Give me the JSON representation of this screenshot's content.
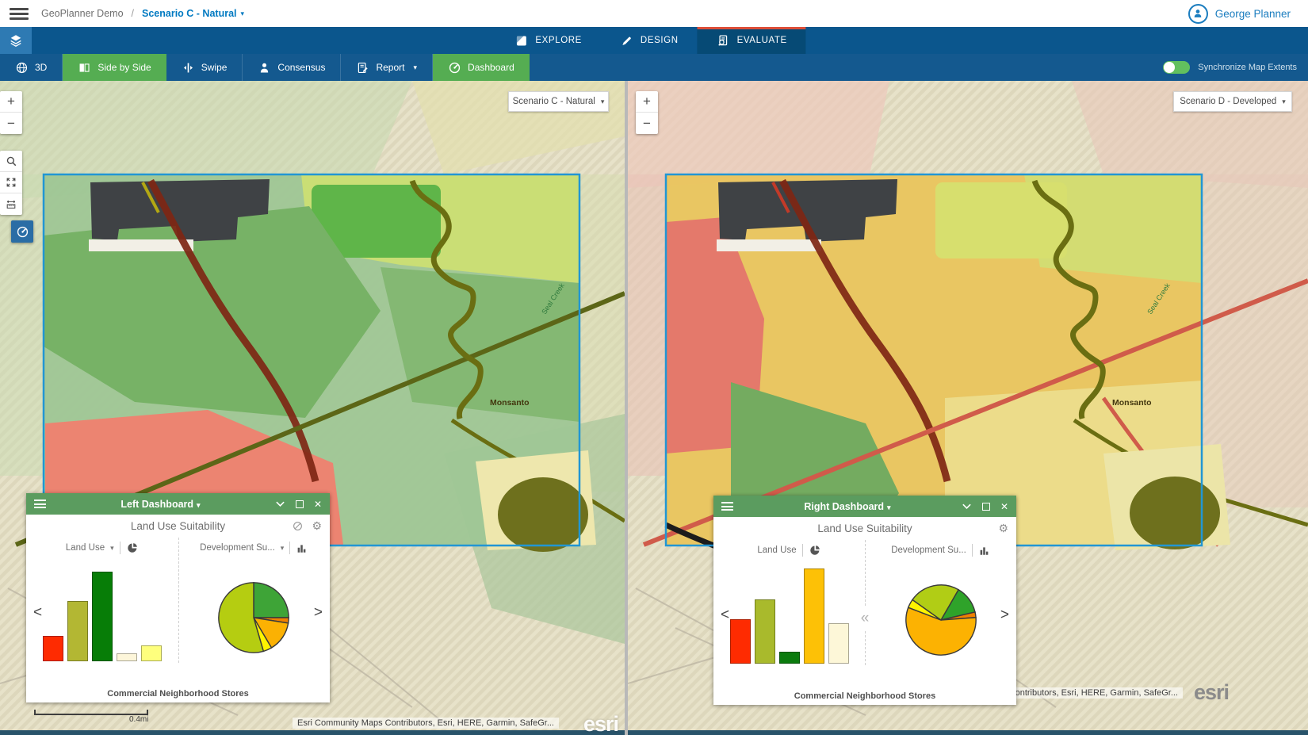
{
  "topbar": {
    "breadcrumb_root": "GeoPlanner Demo",
    "breadcrumb_sep": "/",
    "breadcrumb_current": "Scenario C - Natural",
    "user_name": "George Planner"
  },
  "nav": {
    "tabs": [
      {
        "label": "EXPLORE",
        "icon": "explore-icon"
      },
      {
        "label": "DESIGN",
        "icon": "design-icon"
      },
      {
        "label": "EVALUATE",
        "icon": "evaluate-icon"
      }
    ],
    "active_tab": "EVALUATE"
  },
  "toolbar": {
    "buttons": [
      {
        "label": "3D",
        "icon": "globe-3d-icon",
        "active": false
      },
      {
        "label": "Side by Side",
        "icon": "side-by-side-icon",
        "active": true
      },
      {
        "label": "Swipe",
        "icon": "swipe-icon",
        "active": false
      },
      {
        "label": "Consensus",
        "icon": "consensus-icon",
        "active": false
      },
      {
        "label": "Report",
        "icon": "report-icon",
        "active": false,
        "has_dropdown": true
      },
      {
        "label": "Dashboard",
        "icon": "dashboard-gauge-icon",
        "active": true
      }
    ],
    "sync_toggle": {
      "label": "Synchronize Map Extents",
      "on": true
    }
  },
  "left_map": {
    "scenario": "Scenario C - Natural",
    "place_label": "Monsanto",
    "creek_label": "Seal Creek",
    "scale_label": "0.4mi",
    "attribution": "Esri Community Maps Contributors, Esri, HERE, Garmin, SafeGr...",
    "logo": "esri"
  },
  "right_map": {
    "scenario": "Scenario D - Developed",
    "place_label": "Monsanto",
    "creek_label": "Seal Creek",
    "attribution": "Esri Community Maps Contributors, Esri, HERE, Garmin, SafeGr...",
    "logo": "esri"
  },
  "left_dashboard": {
    "title": "Left Dashboard",
    "subtitle": "Land Use Suitability",
    "widget1_label": "Land Use",
    "widget2_label": "Development Su...",
    "caption": "Commercial Neighborhood Stores"
  },
  "right_dashboard": {
    "title": "Right Dashboard",
    "subtitle": "Land Use Suitability",
    "widget1_label": "Land Use",
    "widget2_label": "Development Su...",
    "caption": "Commercial Neighborhood Stores"
  },
  "glyphs": {
    "caret": "▾",
    "close": "✕",
    "gear": "⚙",
    "chev_left": "<",
    "chev_right": ">",
    "chev_double": "«",
    "plus": "+",
    "minus": "−"
  },
  "colors": {
    "nav_blue": "#0b568d",
    "toolbar_blue": "#14598f",
    "active_tab_blue": "#064a75",
    "tab_accent_red": "#dc4e38",
    "green_button": "#55ad52",
    "panel_header_green": "#5b9c5f",
    "esri_link_blue": "#0079c1",
    "toggle_green": "#62c05e",
    "analysis_rect_blue": "#2196d4"
  },
  "chart_data": [
    {
      "id": "left_bar",
      "type": "bar",
      "title": "Land Use (Left Dashboard - Scenario C Natural)",
      "values": [
        25,
        59,
        88,
        8,
        16
      ],
      "colors": [
        "#fe2b01",
        "#b3b733",
        "#077d07",
        "#fdf6da",
        "#feff7d"
      ],
      "ylim": [
        0,
        100
      ],
      "note": "relative bar heights in percent; no axis tick labels visible"
    },
    {
      "id": "left_pie",
      "type": "pie",
      "title": "Development Su... (Left Dashboard)",
      "start_angle": 0,
      "slices": [
        {
          "value": 25,
          "color": "#3ea437"
        },
        {
          "value": 2.5,
          "color": "#ef8100"
        },
        {
          "value": 14,
          "color": "#fbb103"
        },
        {
          "value": 4,
          "color": "#fef400"
        },
        {
          "value": 54.5,
          "color": "#b5cd11"
        }
      ]
    },
    {
      "id": "right_bar",
      "type": "bar",
      "title": "Land Use (Right Dashboard - Scenario D Developed)",
      "values": [
        44,
        63,
        12,
        94,
        40
      ],
      "colors": [
        "#fe2b01",
        "#a9ba2c",
        "#0b7b0e",
        "#fdc106",
        "#fdf7d8"
      ],
      "ylim": [
        0,
        100
      ],
      "note": "relative bar heights in percent; no axis tick labels visible"
    },
    {
      "id": "right_pie",
      "type": "pie",
      "title": "Development Su... (Right Dashboard)",
      "start_angle": 30,
      "slices": [
        {
          "value": 13,
          "color": "#2fa32a"
        },
        {
          "value": 2.5,
          "color": "#f08000"
        },
        {
          "value": 57,
          "color": "#fcb202"
        },
        {
          "value": 4,
          "color": "#fdf400"
        },
        {
          "value": 23.5,
          "color": "#b1cd15"
        }
      ]
    }
  ]
}
